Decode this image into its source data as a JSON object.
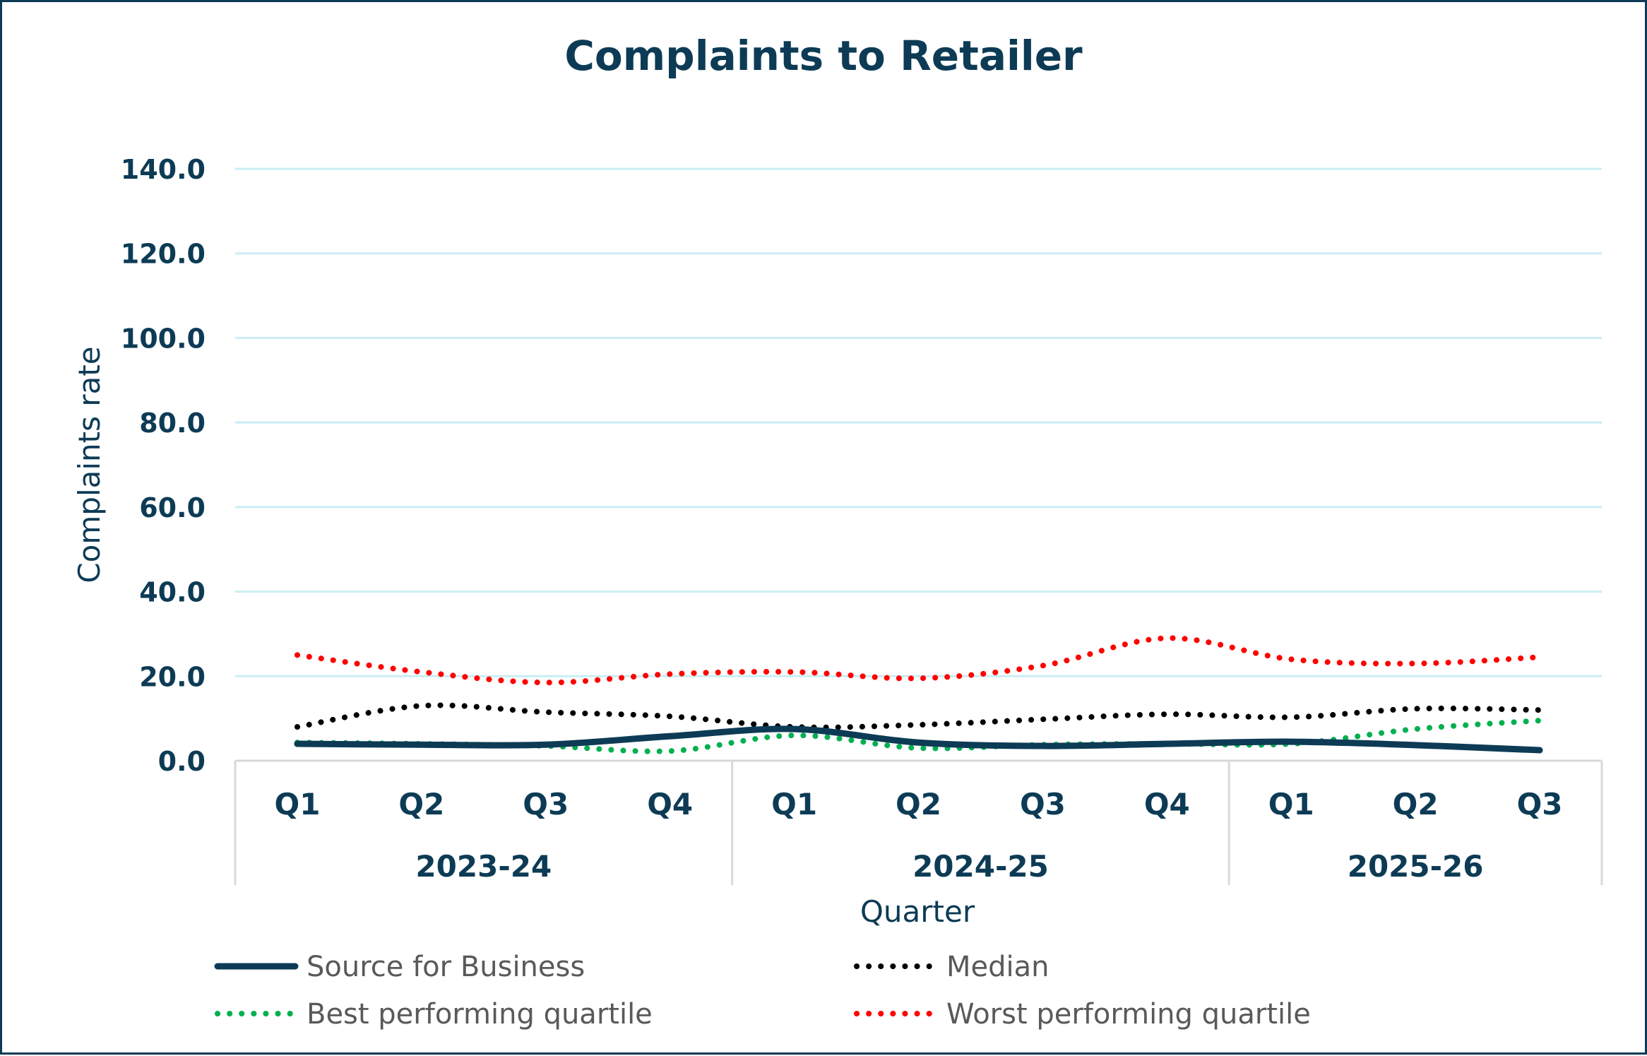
{
  "chart_data": {
    "type": "line",
    "title": "Complaints to Retailer",
    "xlabel": "Quarter",
    "ylabel": "Complaints rate",
    "ylim": [
      0,
      140
    ],
    "yticks": [
      "0.0",
      "20.0",
      "40.0",
      "60.0",
      "80.0",
      "100.0",
      "120.0",
      "140.0"
    ],
    "grid": true,
    "legend_position": "bottom",
    "categories": [
      "Q1",
      "Q2",
      "Q3",
      "Q4",
      "Q1",
      "Q2",
      "Q3",
      "Q4",
      "Q1",
      "Q2",
      "Q3"
    ],
    "groups": [
      {
        "label": "2023-24",
        "count": 4
      },
      {
        "label": "2024-25",
        "count": 4
      },
      {
        "label": "2025-26",
        "count": 3
      }
    ],
    "series": [
      {
        "name": "Source for Business",
        "color": "#0d3b55",
        "style": "solid",
        "values": [
          4.0,
          3.8,
          3.8,
          5.8,
          7.5,
          4.3,
          3.5,
          4.0,
          4.5,
          3.7,
          2.5
        ]
      },
      {
        "name": "Median",
        "color": "#000000",
        "style": "dotted",
        "values": [
          8.0,
          13.0,
          11.5,
          10.5,
          8.0,
          8.5,
          9.8,
          11.0,
          10.3,
          12.3,
          12.0
        ]
      },
      {
        "name": "Best performing quartile",
        "color": "#00b050",
        "style": "dotted",
        "values": [
          4.3,
          4.0,
          3.5,
          2.3,
          6.0,
          3.0,
          3.8,
          4.0,
          4.0,
          7.5,
          9.5
        ]
      },
      {
        "name": "Worst performing quartile",
        "color": "#ff0000",
        "style": "dotted",
        "values": [
          25.0,
          21.0,
          18.5,
          20.5,
          21.0,
          19.5,
          22.5,
          29.0,
          24.0,
          23.0,
          24.5
        ]
      }
    ]
  }
}
